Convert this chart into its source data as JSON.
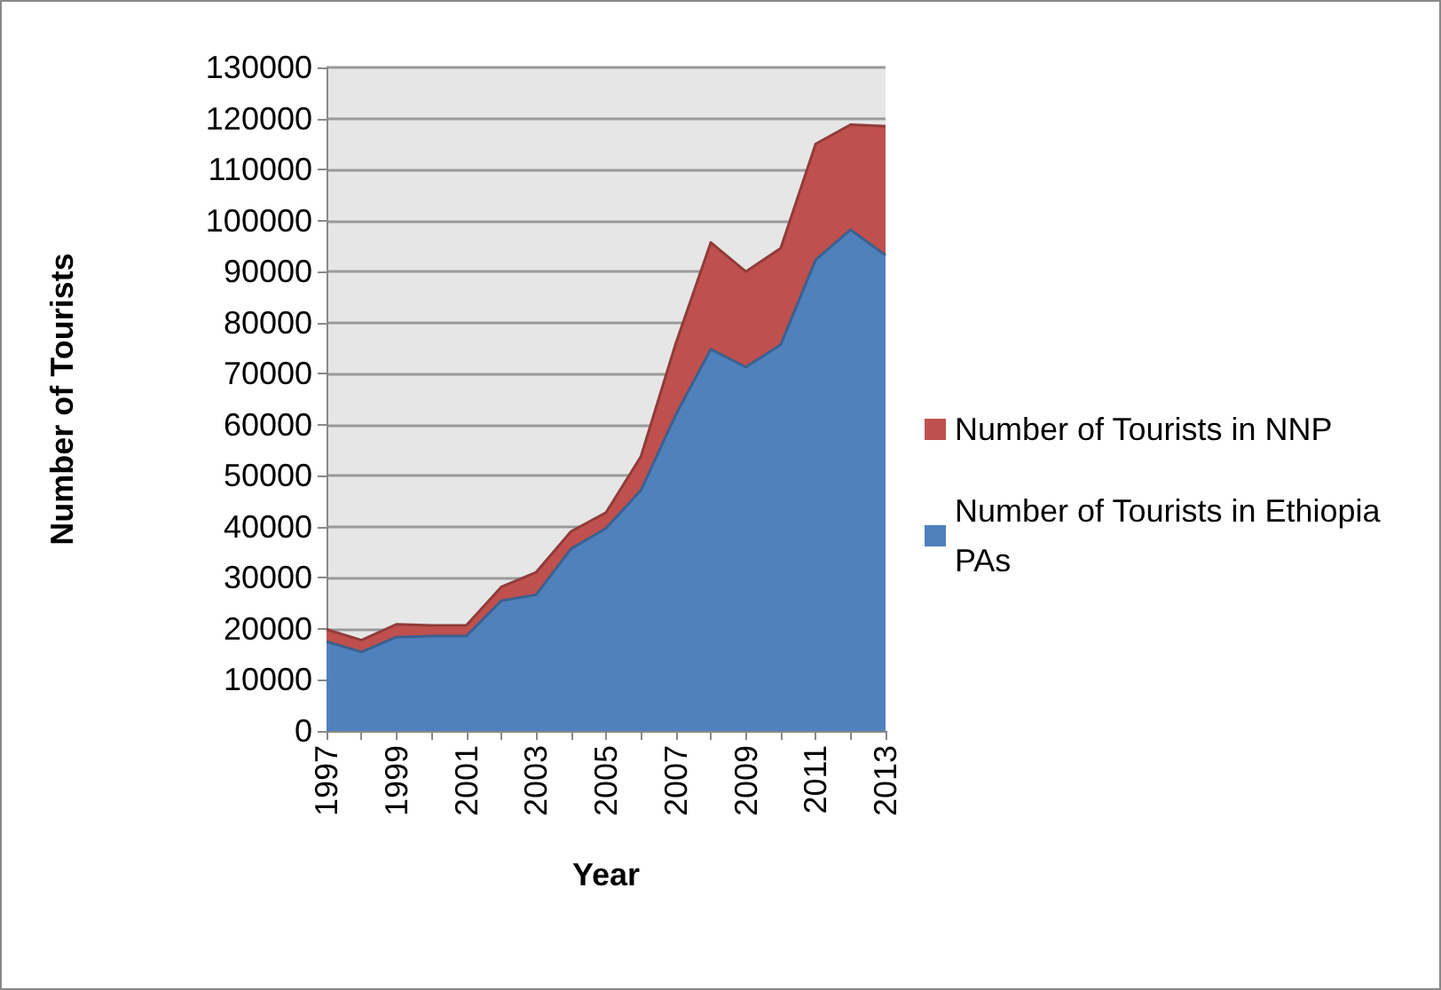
{
  "chart_data": {
    "type": "area",
    "stacked": true,
    "xlabel": "Year",
    "ylabel": "Number of Tourists",
    "categories": [
      "1997",
      null,
      "1999",
      null,
      "2001",
      null,
      "2003",
      null,
      "2005",
      null,
      "2007",
      null,
      "2009",
      null,
      "2011",
      null,
      "2013"
    ],
    "series": [
      {
        "name": "Number of Tourists in Ethiopia PAs",
        "color": "#4f81bd",
        "values": [
          17500,
          15500,
          18400,
          18600,
          18600,
          25500,
          26700,
          35700,
          39700,
          47200,
          62000,
          74800,
          71300,
          75700,
          92300,
          98200,
          93200
        ]
      },
      {
        "name": "Number of Tourists in NNP",
        "color": "#c0504d",
        "values": [
          2400,
          2300,
          2500,
          2100,
          2100,
          2700,
          4400,
          3400,
          3100,
          6600,
          14000,
          20900,
          18700,
          18900,
          22700,
          20600,
          25300
        ]
      }
    ],
    "ylim": [
      0,
      130000
    ],
    "yticks": [
      0,
      10000,
      20000,
      30000,
      40000,
      50000,
      60000,
      70000,
      80000,
      90000,
      100000,
      110000,
      120000,
      130000
    ],
    "grid": "y",
    "legend": "right"
  }
}
